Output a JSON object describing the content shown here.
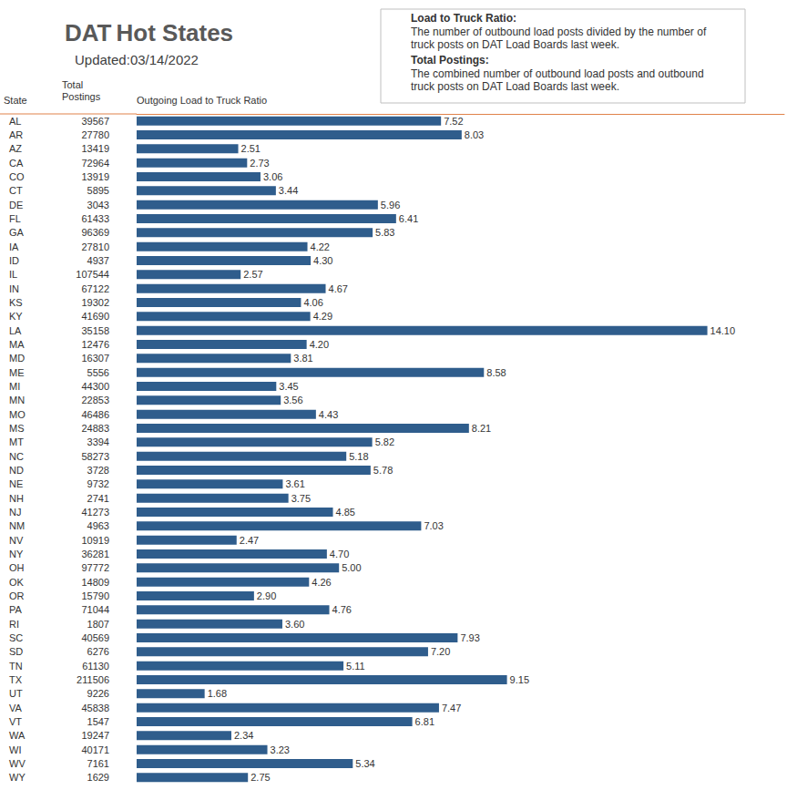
{
  "chart_data": {
    "type": "bar",
    "title": "DAT Hot States",
    "subtitle": "Updated:03/14/2022",
    "y_label": "State",
    "total_label": "Total Postings",
    "x_label": "Outgoing Load to Truck Ratio",
    "notes": [
      {
        "title": "Load to Truck Ratio:",
        "text": "The number of outbound load posts divided by the number of truck posts on DAT Load Boards last week."
      },
      {
        "title": "Total Postings:",
        "text": "The combined number of outbound load posts and outbound truck posts on DAT Load Boards last week."
      }
    ],
    "categories": [
      "AL",
      "AR",
      "AZ",
      "CA",
      "CO",
      "CT",
      "DE",
      "FL",
      "GA",
      "IA",
      "ID",
      "IL",
      "IN",
      "KS",
      "KY",
      "LA",
      "MA",
      "MD",
      "ME",
      "MI",
      "MN",
      "MO",
      "MS",
      "MT",
      "NC",
      "ND",
      "NE",
      "NH",
      "NJ",
      "NM",
      "NV",
      "NY",
      "OH",
      "OK",
      "OR",
      "PA",
      "RI",
      "SC",
      "SD",
      "TN",
      "TX",
      "UT",
      "VA",
      "VT",
      "WA",
      "WI",
      "WV",
      "WY"
    ],
    "total_postings": [
      39567,
      27780,
      13419,
      72964,
      13919,
      5895,
      3043,
      61433,
      96369,
      27810,
      4937,
      107544,
      67122,
      19302,
      41690,
      35158,
      12476,
      16307,
      5556,
      44300,
      22853,
      46486,
      24883,
      3394,
      58273,
      3728,
      9732,
      2741,
      41273,
      4963,
      10919,
      36281,
      97772,
      14809,
      15790,
      71044,
      1807,
      40569,
      6276,
      61130,
      211506,
      9226,
      45838,
      1547,
      19247,
      40171,
      7161,
      1629
    ],
    "values": [
      7.52,
      8.03,
      2.51,
      2.73,
      3.06,
      3.44,
      5.96,
      6.41,
      5.83,
      4.22,
      4.3,
      2.57,
      4.67,
      4.06,
      4.29,
      14.1,
      4.2,
      3.81,
      8.58,
      3.45,
      3.56,
      4.43,
      8.21,
      5.82,
      5.18,
      5.78,
      3.61,
      3.75,
      4.85,
      7.03,
      2.47,
      4.7,
      5.0,
      4.26,
      2.9,
      4.76,
      3.6,
      7.93,
      7.2,
      5.11,
      9.15,
      1.68,
      7.47,
      6.81,
      2.34,
      3.23,
      5.34,
      2.75
    ],
    "value_labels": [
      "7.52",
      "8.03",
      "2.51",
      "2.73",
      "3.06",
      "3.44",
      "5.96",
      "6.41",
      "5.83",
      "4.22",
      "4.30",
      "2.57",
      "4.67",
      "4.06",
      "4.29",
      "14.10",
      "4.20",
      "3.81",
      "8.58",
      "3.45",
      "3.56",
      "4.43",
      "8.21",
      "5.82",
      "5.18",
      "5.78",
      "3.61",
      "3.75",
      "4.85",
      "7.03",
      "2.47",
      "4.70",
      "5.00",
      "4.26",
      "2.90",
      "4.76",
      "3.60",
      "7.93",
      "7.20",
      "5.11",
      "9.15",
      "1.68",
      "7.47",
      "6.81",
      "2.34",
      "3.23",
      "5.34",
      "2.75"
    ],
    "color": "#2f5d8c",
    "orientation": "horizontal",
    "xlim": [
      0,
      16
    ],
    "xticks": [
      0,
      16
    ],
    "tick_labels": "y",
    "grid": false,
    "data_labels": true
  }
}
